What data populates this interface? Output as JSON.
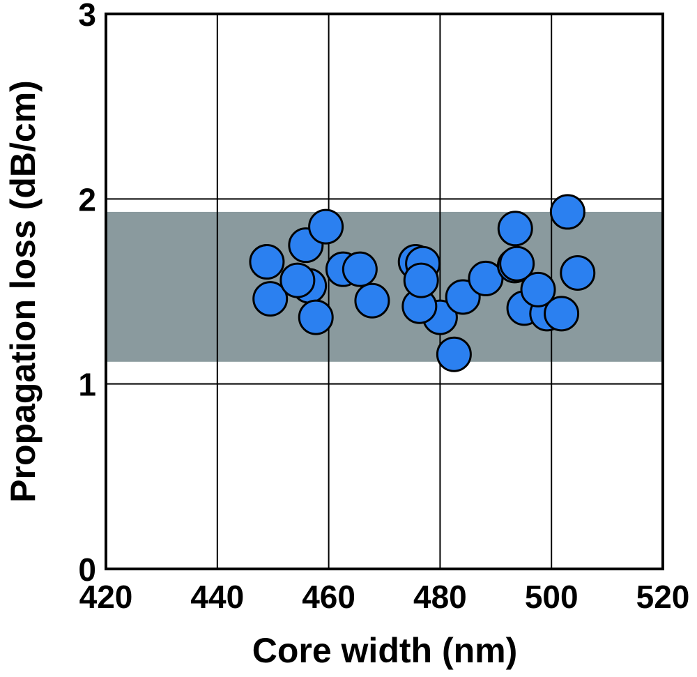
{
  "chart_data": {
    "type": "scatter",
    "title": "",
    "xlabel": "Core width (nm)",
    "ylabel": "Propagation loss (dB/cm)",
    "xlim": [
      420,
      520
    ],
    "ylim": [
      0,
      3
    ],
    "xticks": [
      "420",
      "440",
      "460",
      "480",
      "500",
      "520"
    ],
    "yticks": [
      "0",
      "1",
      "2",
      "3"
    ],
    "grid": true,
    "band": {
      "y_low": 1.12,
      "y_high": 1.93,
      "color": "#8a9a9e"
    },
    "marker_color": "#2b80f0",
    "points": [
      {
        "x": 448.9,
        "y": 1.66
      },
      {
        "x": 449.5,
        "y": 1.46
      },
      {
        "x": 455.9,
        "y": 1.75
      },
      {
        "x": 456.5,
        "y": 1.53
      },
      {
        "x": 454.4,
        "y": 1.56
      },
      {
        "x": 457.7,
        "y": 1.36
      },
      {
        "x": 459.5,
        "y": 1.85
      },
      {
        "x": 462.6,
        "y": 1.62
      },
      {
        "x": 465.6,
        "y": 1.62
      },
      {
        "x": 467.8,
        "y": 1.45
      },
      {
        "x": 475.6,
        "y": 1.66
      },
      {
        "x": 476.9,
        "y": 1.65
      },
      {
        "x": 480.0,
        "y": 1.36
      },
      {
        "x": 476.3,
        "y": 1.42
      },
      {
        "x": 476.6,
        "y": 1.56
      },
      {
        "x": 482.5,
        "y": 1.16
      },
      {
        "x": 484.1,
        "y": 1.47
      },
      {
        "x": 488.2,
        "y": 1.57
      },
      {
        "x": 493.5,
        "y": 1.84
      },
      {
        "x": 493.4,
        "y": 1.64
      },
      {
        "x": 493.8,
        "y": 1.65
      },
      {
        "x": 495.1,
        "y": 1.41
      },
      {
        "x": 499.2,
        "y": 1.38
      },
      {
        "x": 501.8,
        "y": 1.38
      },
      {
        "x": 497.6,
        "y": 1.51
      },
      {
        "x": 502.9,
        "y": 1.93
      },
      {
        "x": 504.7,
        "y": 1.6
      }
    ]
  }
}
